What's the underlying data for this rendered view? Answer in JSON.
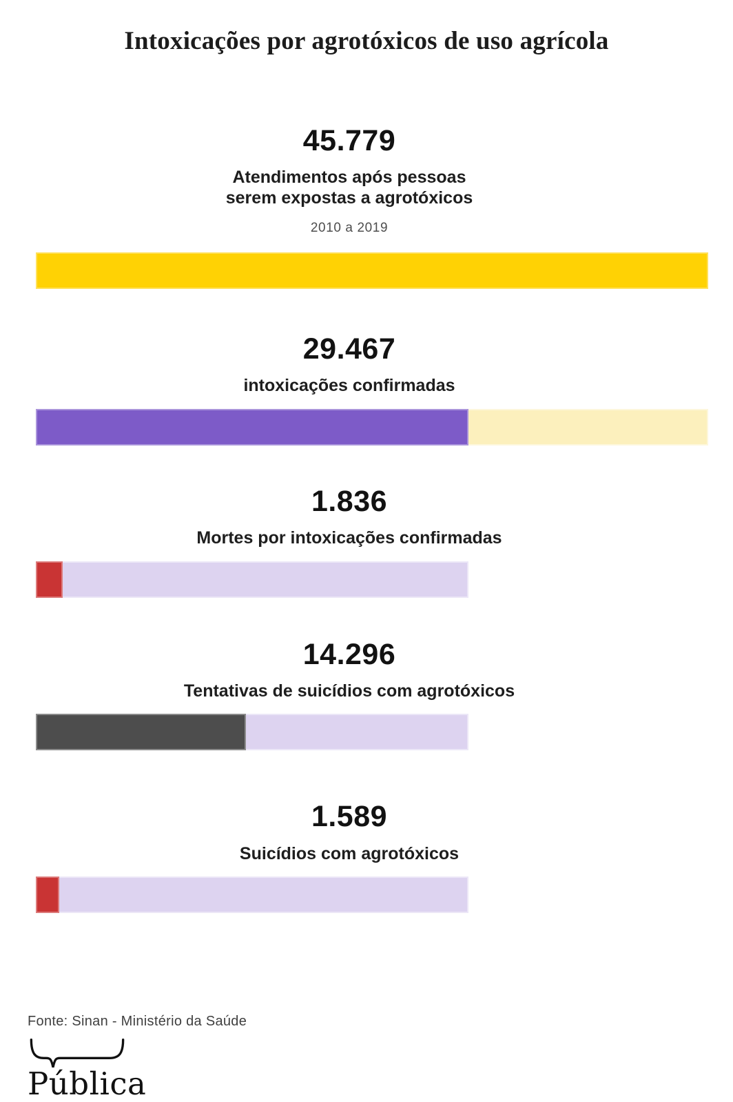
{
  "page": {
    "title": "Intoxicações por agrotóxicos de uso agrícola"
  },
  "chart_data": {
    "type": "bar",
    "title": "Intoxicações por agrotóxicos de uso agrícola",
    "period": "2010 a 2019",
    "scale_total": 45779,
    "orientation": "horizontal",
    "colors": {
      "yellow": "#FFD204",
      "pale_yellow": "#FCF0BD",
      "purple": "#7D5BC8",
      "lavender": "#DDD3F0",
      "red": "#C93434",
      "dark_gray": "#4D4D4D"
    },
    "bars": [
      {
        "id": "atendimentos",
        "number": "45.779",
        "value": 45779,
        "track_value": 45779,
        "label_line1": "Atendimentos após pessoas",
        "label_line2": "serem expostas a agrotóxicos",
        "period": "2010 a 2019",
        "fill_color": "#FFD204",
        "track_color": "#FFD204"
      },
      {
        "id": "confirmadas",
        "number": "29.467",
        "value": 29467,
        "track_value": 45779,
        "label": "intoxicações confirmadas",
        "fill_color": "#7D5BC8",
        "track_color": "#FCF0BD"
      },
      {
        "id": "mortes",
        "number": "1.836",
        "value": 1836,
        "track_value": 29467,
        "label": "Mortes por intoxicações confirmadas",
        "fill_color": "#C93434",
        "track_color": "#DDD3F0"
      },
      {
        "id": "tentativas",
        "number": "14.296",
        "value": 14296,
        "track_value": 29467,
        "label": "Tentativas de suicídios com agrotóxicos",
        "fill_color": "#4D4D4D",
        "track_color": "#DDD3F0"
      },
      {
        "id": "suicidios",
        "number": "1.589",
        "value": 1589,
        "track_value": 29467,
        "label": "Suicídios com agrotóxicos",
        "fill_color": "#C93434",
        "track_color": "#DDD3F0"
      }
    ]
  },
  "footer": {
    "source": "Fonte: Sinan - Ministério da Saúde",
    "logo_text": "Pública"
  }
}
